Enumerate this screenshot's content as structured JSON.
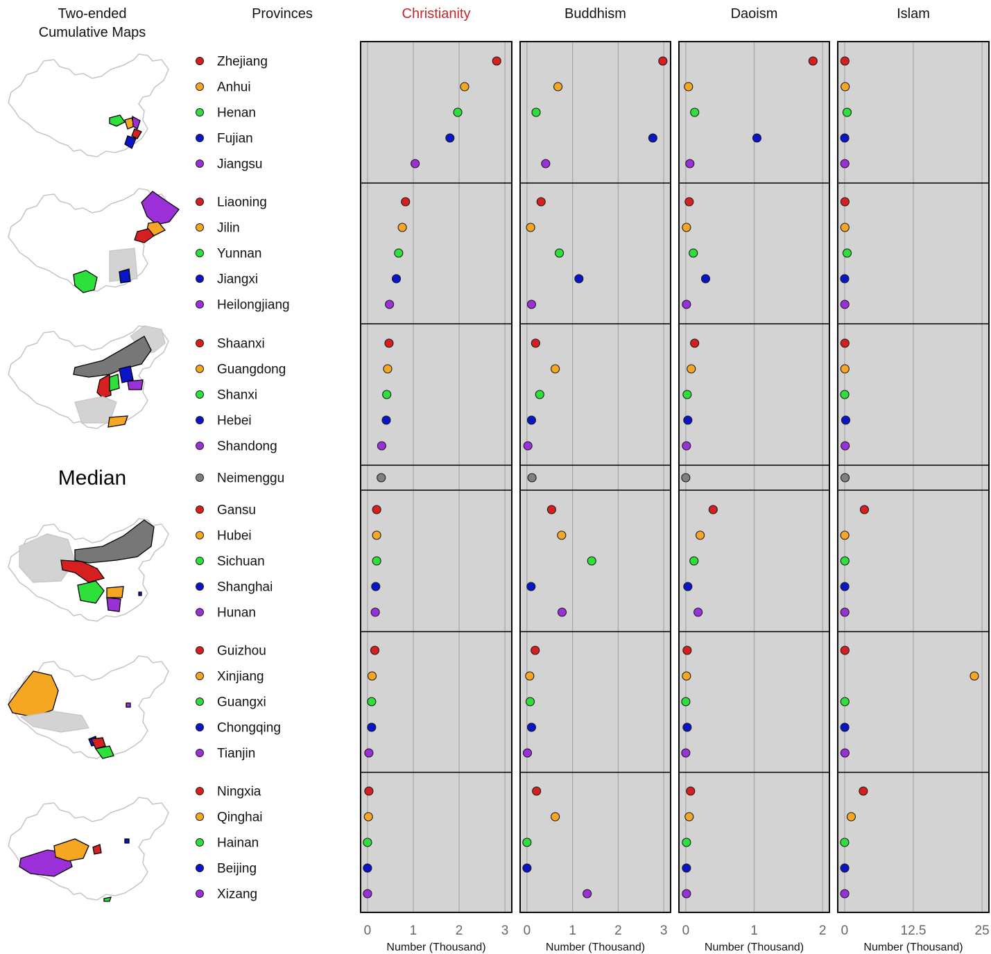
{
  "headers": {
    "maps": "Two-ended\nCumulative Maps",
    "provinces": "Provinces",
    "median_label": "Median"
  },
  "colors": {
    "rank": [
      "#d62020",
      "#f5a623",
      "#2ee03a",
      "#0a14c8",
      "#9b30d9"
    ],
    "median": "#808080",
    "highlight_title": "#c0272d",
    "panel_bg": "#d3d3d3",
    "grid": "#a6a6a6"
  },
  "chart_data": {
    "type": "scatter",
    "x_label": "Number (Thousand)",
    "religions": [
      {
        "name": "Christianity",
        "highlight": true,
        "xlim": [
          -0.15,
          3.15
        ],
        "ticks": [
          0,
          1,
          2,
          3
        ],
        "tick_labels": [
          "0",
          "1",
          "2",
          "3"
        ]
      },
      {
        "name": "Buddhism",
        "highlight": false,
        "xlim": [
          -0.15,
          3.15
        ],
        "ticks": [
          0,
          1,
          2,
          3
        ],
        "tick_labels": [
          "0",
          "1",
          "2",
          "3"
        ]
      },
      {
        "name": "Daoism",
        "highlight": false,
        "xlim": [
          -0.1,
          2.1
        ],
        "ticks": [
          0,
          1,
          2
        ],
        "tick_labels": [
          "0",
          "1",
          "2"
        ]
      },
      {
        "name": "Islam",
        "highlight": false,
        "xlim": [
          -1.25,
          26.25
        ],
        "ticks": [
          0,
          12.5,
          25
        ],
        "tick_labels": [
          "0",
          "12.5",
          "25"
        ]
      }
    ],
    "groups": [
      {
        "provinces": [
          {
            "name": "Zhejiang",
            "values": [
              2.82,
              2.98,
              1.86,
              0.05
            ]
          },
          {
            "name": "Anhui",
            "values": [
              2.12,
              0.68,
              0.04,
              0.1
            ]
          },
          {
            "name": "Henan",
            "values": [
              1.97,
              0.2,
              0.13,
              0.45
            ]
          },
          {
            "name": "Fujian",
            "values": [
              1.8,
              2.76,
              1.04,
              0.02
            ]
          },
          {
            "name": "Jiangsu",
            "values": [
              1.04,
              0.41,
              0.06,
              0.04
            ]
          }
        ]
      },
      {
        "provinces": [
          {
            "name": "Liaoning",
            "values": [
              0.83,
              0.31,
              0.05,
              0.06
            ]
          },
          {
            "name": "Jilin",
            "values": [
              0.76,
              0.08,
              0.01,
              0.05
            ]
          },
          {
            "name": "Yunnan",
            "values": [
              0.68,
              0.71,
              0.11,
              0.45
            ]
          },
          {
            "name": "Jiangxi",
            "values": [
              0.63,
              1.14,
              0.29,
              0.01
            ]
          },
          {
            "name": "Heilongjiang",
            "values": [
              0.48,
              0.1,
              0.01,
              0.04
            ]
          }
        ]
      },
      {
        "provinces": [
          {
            "name": "Shaanxi",
            "values": [
              0.47,
              0.19,
              0.13,
              0.05
            ]
          },
          {
            "name": "Guangdong",
            "values": [
              0.44,
              0.62,
              0.08,
              0.05
            ]
          },
          {
            "name": "Shanxi",
            "values": [
              0.42,
              0.28,
              0.02,
              0.02
            ]
          },
          {
            "name": "Hebei",
            "values": [
              0.41,
              0.1,
              0.03,
              0.2
            ]
          },
          {
            "name": "Shandong",
            "values": [
              0.31,
              0.02,
              0.01,
              0.1
            ]
          }
        ]
      },
      {
        "median": true,
        "provinces": [
          {
            "name": "Neimenggu",
            "values": [
              0.3,
              0.11,
              0.0,
              0.08
            ]
          }
        ]
      },
      {
        "provinces": [
          {
            "name": "Gansu",
            "values": [
              0.2,
              0.54,
              0.4,
              3.6
            ]
          },
          {
            "name": "Hubei",
            "values": [
              0.2,
              0.76,
              0.21,
              0.03
            ]
          },
          {
            "name": "Sichuan",
            "values": [
              0.2,
              1.42,
              0.12,
              0.05
            ]
          },
          {
            "name": "Shanghai",
            "values": [
              0.18,
              0.09,
              0.03,
              0.03
            ]
          },
          {
            "name": "Hunan",
            "values": [
              0.17,
              0.77,
              0.18,
              0.04
            ]
          }
        ]
      },
      {
        "provinces": [
          {
            "name": "Guizhou",
            "values": [
              0.16,
              0.18,
              0.02,
              0.06
            ]
          },
          {
            "name": "Xinjiang",
            "values": [
              0.1,
              0.06,
              0.01,
              23.6
            ]
          },
          {
            "name": "Guangxi",
            "values": [
              0.09,
              0.07,
              0.0,
              0.05
            ]
          },
          {
            "name": "Chongqing",
            "values": [
              0.09,
              0.1,
              0.02,
              0.03
            ]
          },
          {
            "name": "Tianjin",
            "values": [
              0.03,
              0.01,
              0.0,
              0.06
            ]
          }
        ]
      },
      {
        "provinces": [
          {
            "name": "Ningxia",
            "values": [
              0.03,
              0.21,
              0.07,
              3.4
            ]
          },
          {
            "name": "Qinghai",
            "values": [
              0.02,
              0.62,
              0.05,
              1.2
            ]
          },
          {
            "name": "Hainan",
            "values": [
              0.0,
              0.0,
              0.01,
              0.0
            ]
          },
          {
            "name": "Beijing",
            "values": [
              0.0,
              0.0,
              0.01,
              0.02
            ]
          },
          {
            "name": "Xizang",
            "values": [
              0.0,
              1.32,
              0.01,
              0.02
            ]
          }
        ]
      }
    ]
  }
}
